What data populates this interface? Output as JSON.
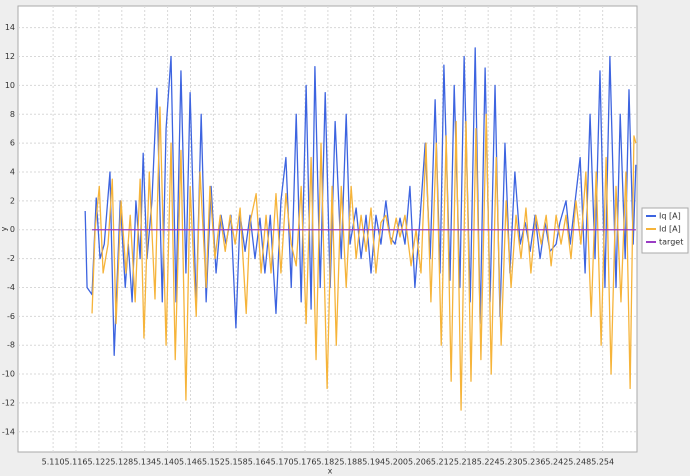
{
  "chart_data": {
    "type": "line",
    "xlabel": "x",
    "ylabel": "y",
    "xlim": [
      5.1008,
      5.263
    ],
    "ylim": [
      -15.4,
      15.5
    ],
    "xticks": [
      {
        "value": 5.11,
        "label": "5.110"
      },
      5.116,
      5.122,
      5.128,
      5.134,
      {
        "value": 5.14,
        "label": "5.140"
      },
      5.146,
      5.152,
      5.158,
      5.164,
      {
        "value": 5.17,
        "label": "5.170"
      },
      5.176,
      5.182,
      5.188,
      5.194,
      {
        "value": 5.2,
        "label": "5.200"
      },
      5.206,
      5.212,
      5.218,
      5.224,
      {
        "value": 5.23,
        "label": "5.230"
      },
      5.236,
      5.242,
      5.248,
      5.254
    ],
    "yticks": [
      -14,
      -12,
      -10,
      -8,
      -6,
      -4,
      -2,
      0,
      2,
      4,
      6,
      8,
      10,
      12,
      14
    ],
    "grid": true,
    "legend": "right",
    "series": [
      {
        "name": "Iq [A]",
        "color": "#3d64e0",
        "x": [
          5.1184,
          5.1189,
          5.1202,
          5.1213,
          5.1223,
          5.1234,
          5.1249,
          5.126,
          5.1276,
          5.1289,
          5.1297,
          5.1307,
          5.1317,
          5.1328,
          5.1336,
          5.1346,
          5.1359,
          5.1372,
          5.1386,
          5.1396,
          5.1409,
          5.1422,
          5.1435,
          5.1448,
          5.1459,
          5.1475,
          5.1488,
          5.1501,
          5.1514,
          5.1527,
          5.154,
          5.1553,
          5.1566,
          5.1579,
          5.159,
          5.1603,
          5.1616,
          5.1629,
          5.1642,
          5.1655,
          5.1669,
          5.1684,
          5.1697,
          5.171,
          5.1724,
          5.1737,
          5.175,
          5.1763,
          5.1776,
          5.1786,
          5.18,
          5.1813,
          5.1826,
          5.1839,
          5.1855,
          5.1868,
          5.1878,
          5.1894,
          5.1907,
          5.192,
          5.1933,
          5.1946,
          5.1959,
          5.1972,
          5.1983,
          5.1996,
          5.2009,
          5.2022,
          5.2035,
          5.2048,
          5.2062,
          5.2075,
          5.2088,
          5.2101,
          5.2114,
          5.2124,
          5.214,
          5.2151,
          5.2166,
          5.2177,
          5.2193,
          5.2206,
          5.2219,
          5.2232,
          5.2245,
          5.2258,
          5.2271,
          5.2284,
          5.2297,
          5.231,
          5.2324,
          5.2337,
          5.235,
          5.2363,
          5.2376,
          5.2389,
          5.2402,
          5.2418,
          5.2428,
          5.2444,
          5.2455,
          5.2468,
          5.2481,
          5.2494,
          5.2507,
          5.252,
          5.2533,
          5.2546,
          5.2559,
          5.2575,
          5.2586,
          5.2599,
          5.2609,
          5.262,
          5.2627
        ],
        "values": [
          1.3,
          -4,
          -4.5,
          2.2,
          -2,
          -1,
          4,
          -8.7,
          2,
          -4,
          -1,
          -5,
          2,
          -2,
          5.3,
          -2,
          2,
          9.8,
          -5,
          7,
          12,
          -5,
          11,
          -3,
          9.5,
          -5.5,
          8,
          -5,
          3,
          -3,
          1,
          -1,
          1,
          -6.8,
          1,
          -1.5,
          1,
          -2,
          0.8,
          -3,
          1,
          -5.8,
          2,
          5,
          -4,
          8,
          -5,
          10,
          -5.5,
          11.3,
          -4,
          9.5,
          -4,
          7.5,
          -2,
          8,
          -1,
          1.5,
          -2,
          1,
          -3,
          1,
          -1,
          2,
          -0.5,
          -1,
          0.8,
          -1,
          3,
          -4,
          1,
          6,
          -2,
          9,
          -3,
          11.4,
          -3.5,
          10,
          -4,
          12,
          -5,
          12.6,
          -6.5,
          11.2,
          -5,
          10,
          -6,
          6,
          -3,
          4,
          -1,
          0.5,
          -1.5,
          1,
          -2,
          0.5,
          -1.5,
          -1,
          0.5,
          2,
          -1,
          2,
          5,
          -3,
          8,
          -2,
          11,
          -4,
          12,
          -4,
          8,
          -2,
          9.7,
          -1,
          4.5
        ]
      },
      {
        "name": "Id [A]",
        "color": "#f6b43a",
        "x": [
          5.1202,
          5.121,
          5.1221,
          5.1231,
          5.1244,
          5.1255,
          5.1265,
          5.1278,
          5.1291,
          5.1302,
          5.1315,
          5.1328,
          5.1338,
          5.1352,
          5.1367,
          5.138,
          5.1396,
          5.1409,
          5.142,
          5.1435,
          5.1448,
          5.1459,
          5.1475,
          5.1485,
          5.1501,
          5.1511,
          5.1524,
          5.1538,
          5.1551,
          5.1564,
          5.1577,
          5.159,
          5.1606,
          5.1616,
          5.1632,
          5.1645,
          5.1658,
          5.1671,
          5.1684,
          5.1697,
          5.171,
          5.1724,
          5.1737,
          5.175,
          5.1763,
          5.1776,
          5.1789,
          5.1802,
          5.1818,
          5.1831,
          5.1842,
          5.1855,
          5.1868,
          5.1881,
          5.1894,
          5.1907,
          5.192,
          5.1933,
          5.1946,
          5.1959,
          5.1972,
          5.1986,
          5.1999,
          5.2009,
          5.2022,
          5.2038,
          5.2051,
          5.2064,
          5.2077,
          5.209,
          5.2104,
          5.2117,
          5.213,
          5.2143,
          5.2156,
          5.2169,
          5.2182,
          5.2195,
          5.2208,
          5.2221,
          5.2235,
          5.2248,
          5.2261,
          5.2274,
          5.2287,
          5.23,
          5.2313,
          5.2326,
          5.2339,
          5.2352,
          5.2365,
          5.2379,
          5.2392,
          5.2405,
          5.2418,
          5.2431,
          5.2444,
          5.2457,
          5.247,
          5.2483,
          5.2496,
          5.251,
          5.2523,
          5.2536,
          5.2549,
          5.2562,
          5.2575,
          5.2588,
          5.2601,
          5.2612,
          5.2622,
          5.2627
        ],
        "values": [
          -5.8,
          0,
          3,
          -3,
          -1,
          3.5,
          -6.5,
          2,
          -3,
          1,
          -5,
          3.5,
          -7.5,
          4,
          -4.8,
          8.5,
          -8,
          6,
          -9,
          5.5,
          -11.8,
          3,
          -6,
          4,
          -4,
          3,
          -2,
          1,
          -1.5,
          1,
          -1,
          1.5,
          -5.8,
          0.5,
          2.5,
          -3,
          1,
          -3,
          2.5,
          -3,
          2.5,
          -1,
          -2.5,
          3,
          -6.5,
          5,
          -9,
          6,
          -11,
          3,
          -8,
          3,
          -4,
          3,
          -2,
          1,
          -1.5,
          1.5,
          -3,
          0.5,
          1,
          -1,
          0.8,
          -0.5,
          1,
          -2.5,
          0,
          -3,
          6,
          -5,
          6,
          -8,
          6.5,
          -10.5,
          7.5,
          -12.5,
          7.5,
          -10.5,
          7,
          -9,
          8,
          -10,
          5,
          -8,
          2,
          -4,
          1,
          -2,
          1.5,
          -3,
          1,
          -1,
          1,
          -2.5,
          1,
          -1,
          1,
          -2,
          2,
          -1,
          4,
          -6,
          4,
          -8,
          5,
          -10,
          3,
          -5,
          4,
          -11,
          6.5,
          6
        ]
      },
      {
        "name": "target",
        "color": "#9a3cc4",
        "x": [
          5.1202,
          5.2627
        ],
        "values": [
          0,
          0
        ]
      }
    ]
  }
}
